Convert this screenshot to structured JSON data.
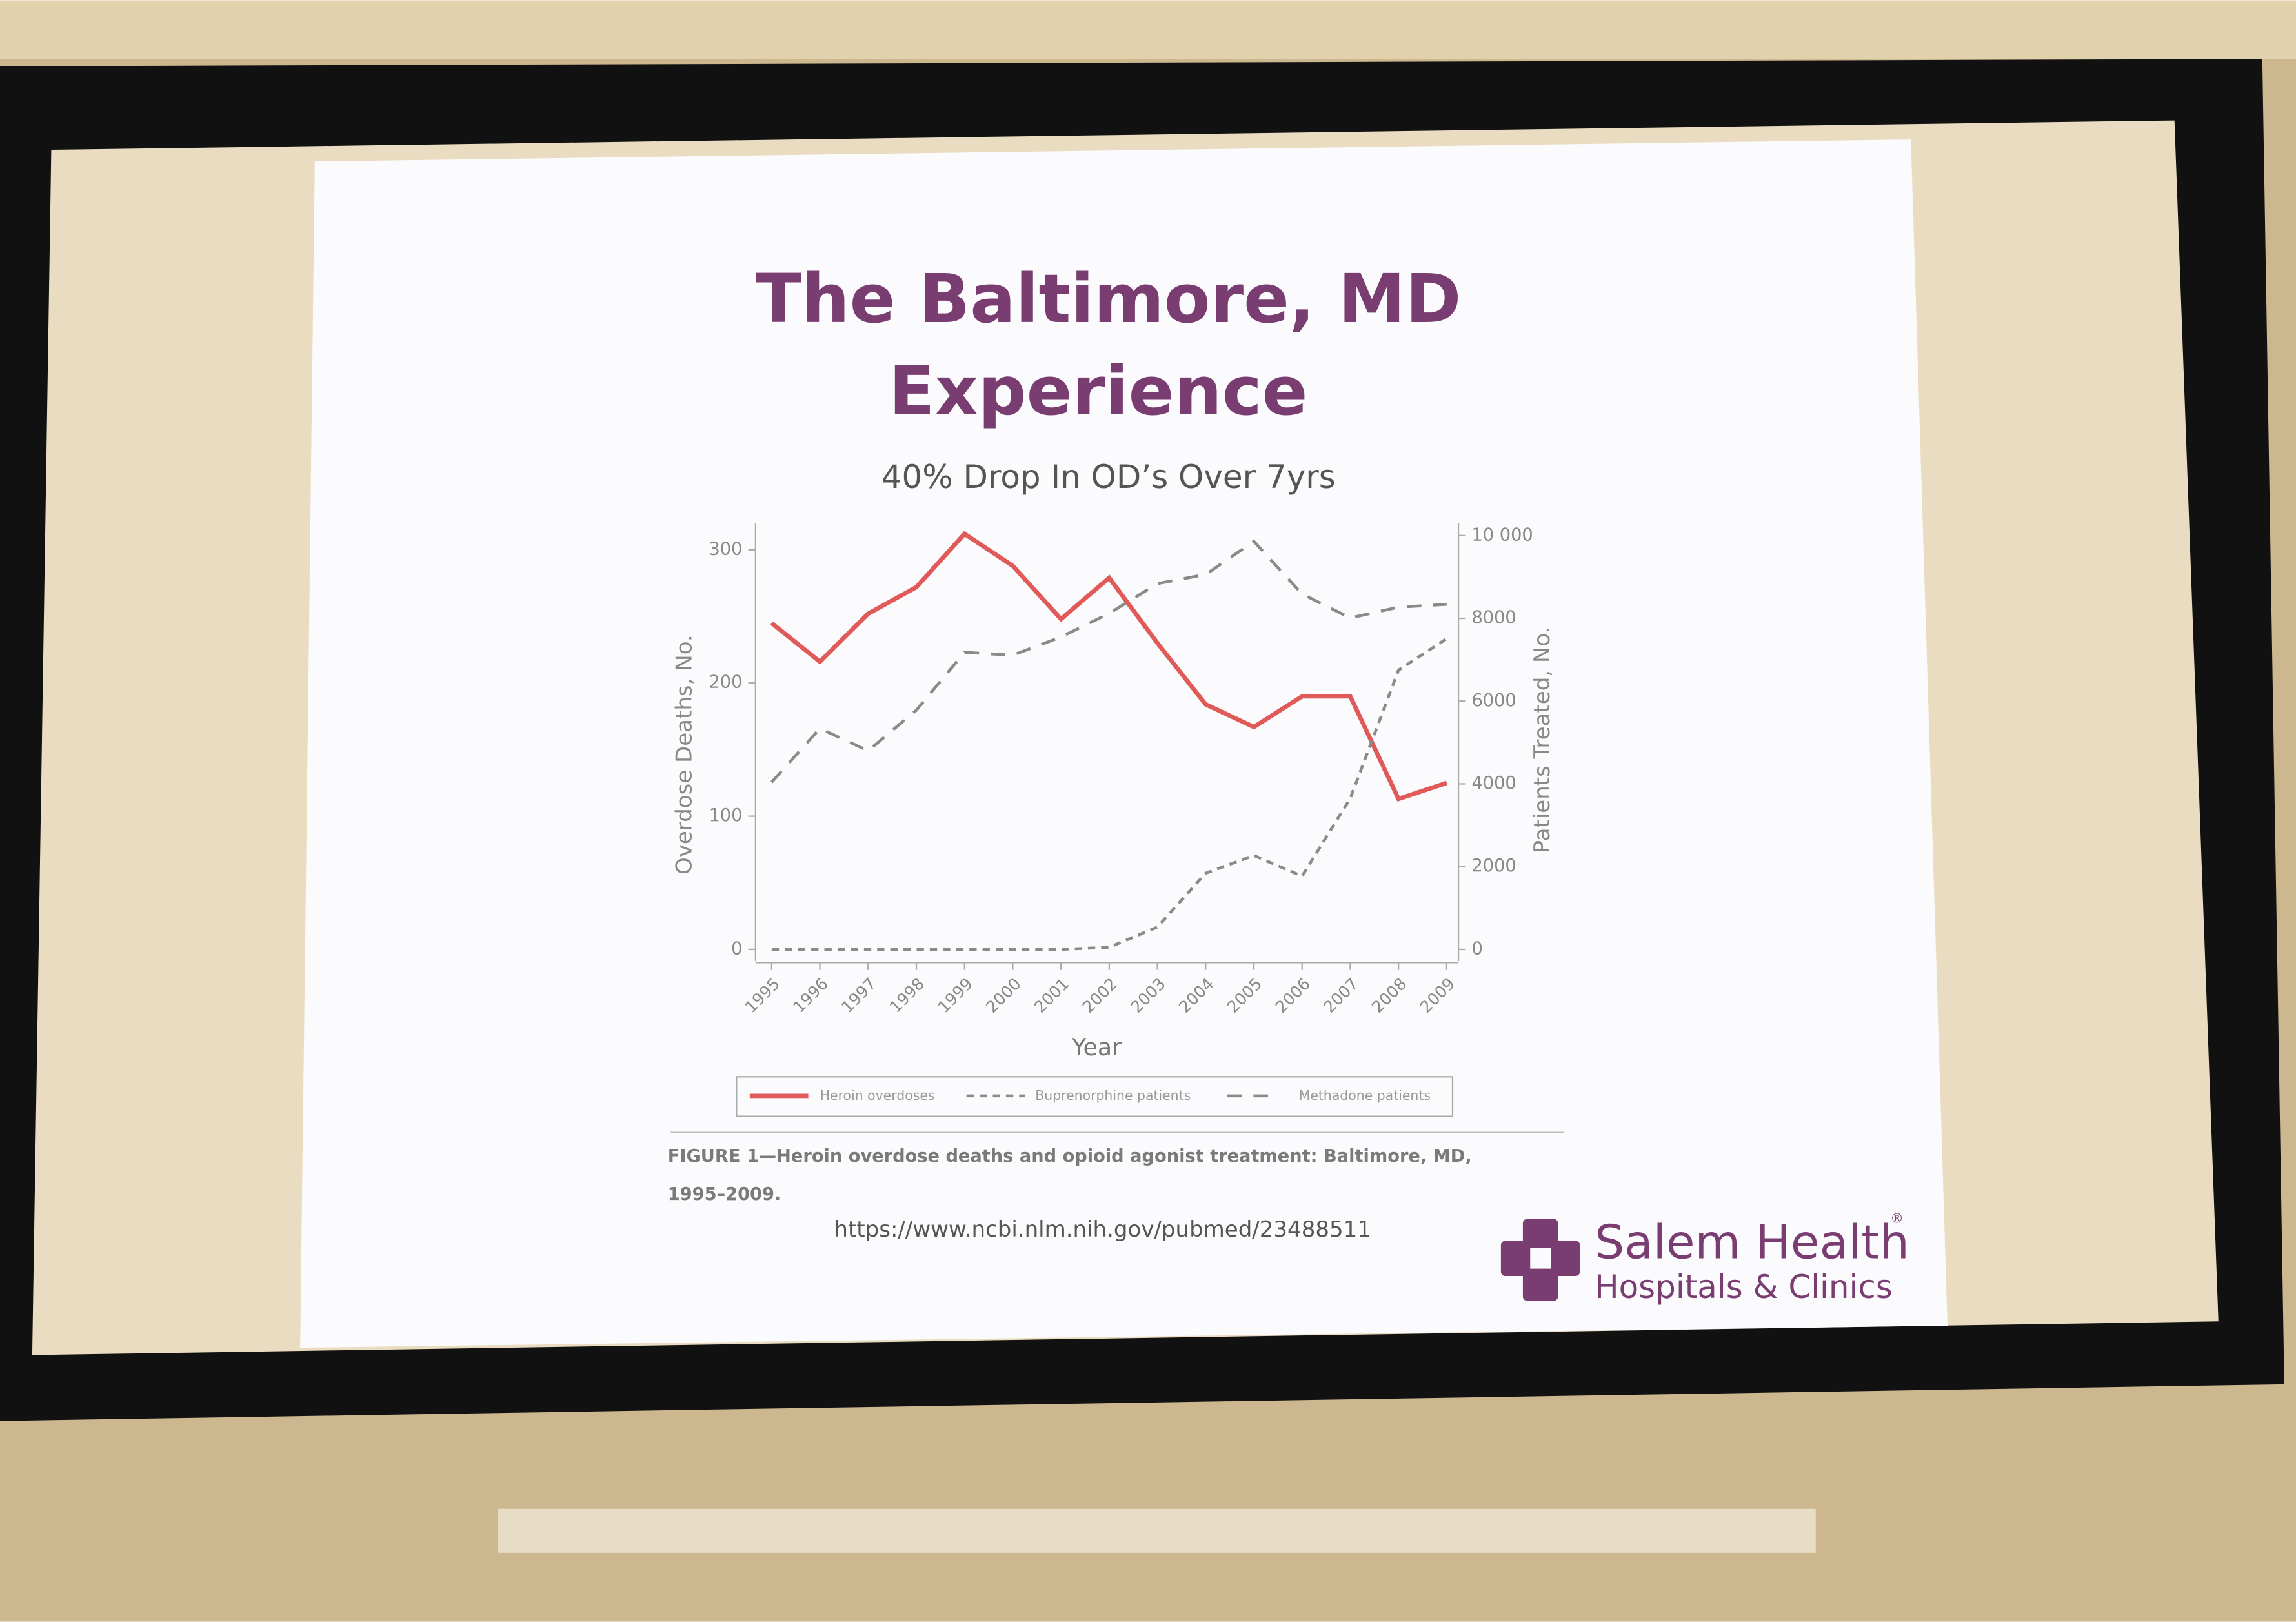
{
  "slide": {
    "title": [
      "The Baltimore, MD",
      "Experience"
    ],
    "subtitle": "40% Drop In OD’s Over 7yrs",
    "caption": "FIGURE 1—Heroin overdose deaths and opioid agonist treatment: Baltimore, MD, 1995–2009.",
    "url": "https://www.ncbi.nlm.nih.gov/pubmed/23488511",
    "logo": {
      "name": "Salem Health",
      "mark": "®",
      "tagline": "Hospitals & Clinics"
    }
  },
  "chart_data": {
    "type": "line",
    "x_label": "Year",
    "y_label": "Overdose Deaths, No.",
    "y2_label": "Patients Treated, No.",
    "categories": [
      "1995",
      "1996",
      "1997",
      "1998",
      "1999",
      "2000",
      "2001",
      "2002",
      "2003",
      "2004",
      "2005",
      "2006",
      "2007",
      "2008",
      "2009"
    ],
    "series": [
      {
        "name": "Heroin overdoses",
        "color": "#e05a5a",
        "line_style": "solid",
        "axis": "y",
        "values": [
          245,
          216,
          252,
          272,
          312,
          288,
          248,
          279,
          230,
          184,
          167,
          190,
          190,
          113,
          125
        ]
      },
      {
        "name": "Buprenorphine patients",
        "color": "#8a8a8a",
        "line_style": "short-dash",
        "axis": "y2",
        "values": [
          0,
          0,
          0,
          0,
          0,
          0,
          0,
          50,
          540,
          1840,
          2270,
          1770,
          3650,
          6750,
          7510
        ]
      },
      {
        "name": "Methadone patients",
        "color": "#8a8a8a",
        "line_style": "long-dash",
        "axis": "y2",
        "values": [
          4040,
          5340,
          4800,
          5780,
          7180,
          7110,
          7550,
          8120,
          8840,
          9060,
          9860,
          8590,
          8010,
          8270,
          8340
        ]
      }
    ],
    "ylim": [
      0,
      320
    ],
    "yticks": [
      0,
      100,
      200,
      300
    ],
    "y2lim": [
      0,
      10300
    ],
    "y2ticks": [
      0,
      2000,
      4000,
      6000,
      8000,
      {
        "value": 10000,
        "label": "10 000"
      }
    ],
    "legend": "bottom",
    "grid": false
  }
}
